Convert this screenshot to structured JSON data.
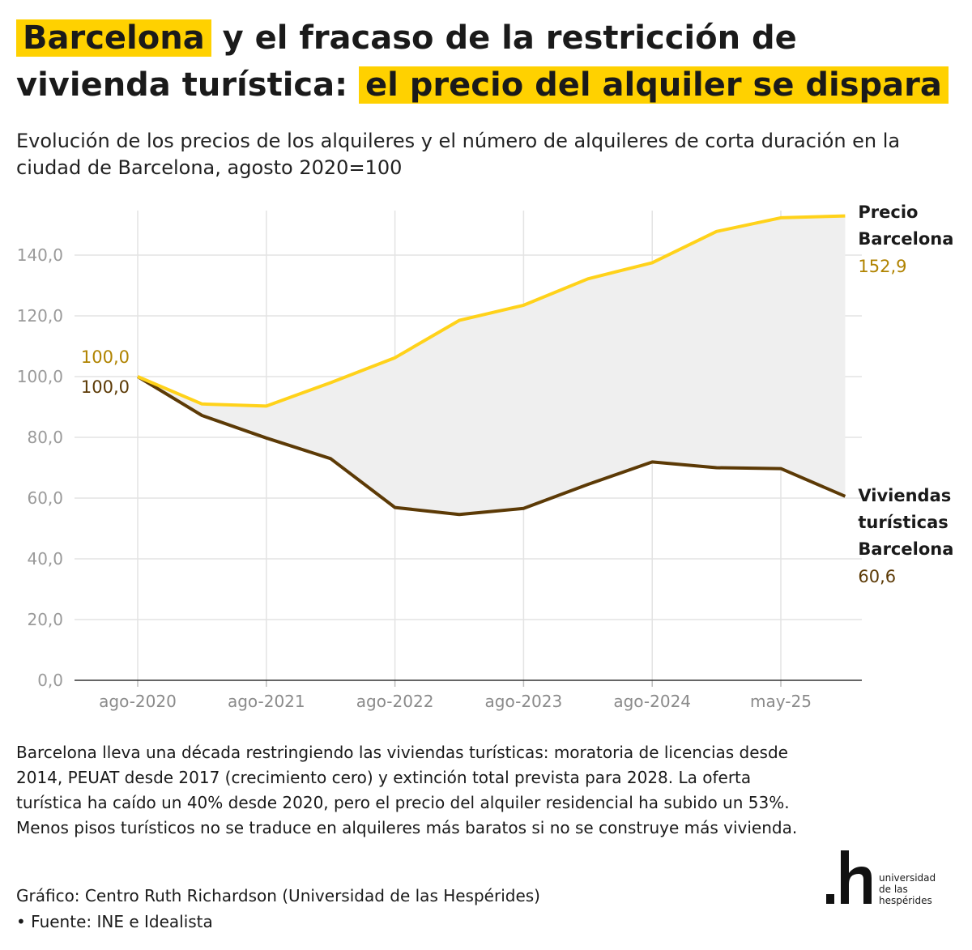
{
  "header": {
    "title_part1": "Barcelona",
    "title_part2": " y el fracaso de la restricción de vivienda turística: ",
    "title_part3": "el precio del alquiler se dispara",
    "subtitle": "Evolución de los precios de los alquileres y el número de alquileres de corta duración en la ciudad de Barcelona, agosto 2020=100"
  },
  "colors": {
    "highlight": "#ffd100",
    "price_line": "#ffd21a",
    "tourist_line": "#5c3a06",
    "price_label": "#b08300",
    "tourist_label": "#5c3a06",
    "gap_fill": "#efefef"
  },
  "chart_data": {
    "type": "line",
    "x_tick_labels": [
      "ago-2020",
      "ago-2021",
      "ago-2022",
      "ago-2023",
      "ago-2024",
      "may-25"
    ],
    "x": [
      "ago-2020",
      "feb-2021",
      "ago-2021",
      "feb-2022",
      "ago-2022",
      "feb-2023",
      "ago-2023",
      "feb-2024",
      "ago-2024",
      "feb-2025",
      "may-2025",
      "ago-2025"
    ],
    "series": [
      {
        "name": "Precio Barcelona",
        "label_line1": "Precio",
        "label_line2": "Barcelona",
        "values": [
          100.0,
          91.0,
          90.3,
          98.0,
          106.2,
          118.5,
          123.5,
          132.2,
          137.5,
          147.8,
          152.3,
          152.9
        ],
        "start_label": "100,0",
        "end_label": "152,9"
      },
      {
        "name": "Viviendas turísticas Barcelona",
        "label_line1": "Viviendas",
        "label_line2": "turísticas",
        "label_line3": "Barcelona",
        "values": [
          100.0,
          87.2,
          79.8,
          73.0,
          56.9,
          54.6,
          56.6,
          64.5,
          71.9,
          70.0,
          69.7,
          60.6
        ],
        "start_label": "100,0",
        "end_label": "60,6"
      }
    ],
    "y_ticks": [
      "0,0",
      "20,0",
      "40,0",
      "60,0",
      "80,0",
      "100,0",
      "120,0",
      "140,0"
    ],
    "ylim": [
      0,
      160
    ],
    "grid": true,
    "legend": "direct labels at line ends"
  },
  "description": "Barcelona lleva una década restringiendo las viviendas turísticas: moratoria de licencias desde 2014, PEUAT desde 2017 (crecimiento cero) y extinción total prevista para 2028. La oferta turística ha caído un 40% desde 2020, pero el precio del alquiler residencial ha subido un 53%. Menos pisos turísticos no se traduce en alquileres más baratos si no se construye más vivienda.",
  "credits": {
    "author": "Gráfico: Centro Ruth Richardson (Universidad de las Hespérides)",
    "source": "• Fuente: INE e Idealista"
  },
  "logo": {
    "line1": "universidad",
    "line2": "de las",
    "line3": "hespérides"
  }
}
